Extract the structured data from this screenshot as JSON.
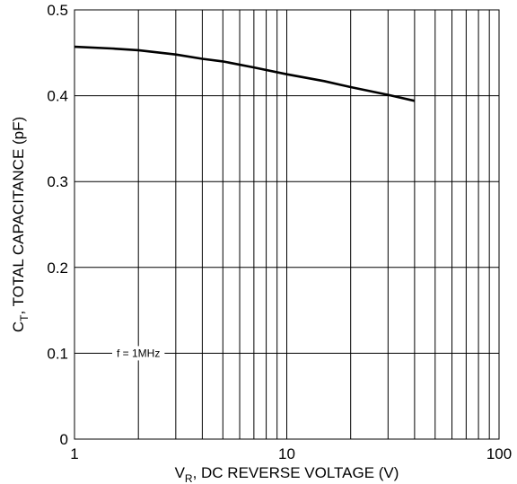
{
  "chart_data": {
    "type": "line",
    "x_scale": "log",
    "xlim": [
      1,
      100
    ],
    "ylim": [
      0,
      0.5
    ],
    "grid": true,
    "x_ticks": [
      1,
      10,
      100
    ],
    "x_tick_labels": [
      "1",
      "10",
      "100"
    ],
    "y_ticks": [
      0,
      0.1,
      0.2,
      0.3,
      0.4,
      0.5
    ],
    "y_tick_labels": [
      "0",
      "0.1",
      "0.2",
      "0.3",
      "0.4",
      "0.5"
    ],
    "xlabel": {
      "main": "V",
      "sub": "R",
      "rest": ", DC REVERSE VOLTAGE (V)"
    },
    "ylabel": {
      "main": "C",
      "sub": "T",
      "rest": ", TOTAL CAPACITANCE (pF)"
    },
    "annotation": {
      "text": "f = 1MHz",
      "y": 0.1
    },
    "series": [
      {
        "x": [
          1,
          1.5,
          2,
          3,
          4,
          5,
          7,
          10,
          15,
          20,
          30,
          40
        ],
        "y": [
          0.457,
          0.455,
          0.453,
          0.448,
          0.443,
          0.44,
          0.433,
          0.425,
          0.417,
          0.41,
          0.401,
          0.394
        ]
      }
    ],
    "colors": {
      "line": "#000000",
      "grid": "#000000",
      "background": "#ffffff"
    }
  }
}
